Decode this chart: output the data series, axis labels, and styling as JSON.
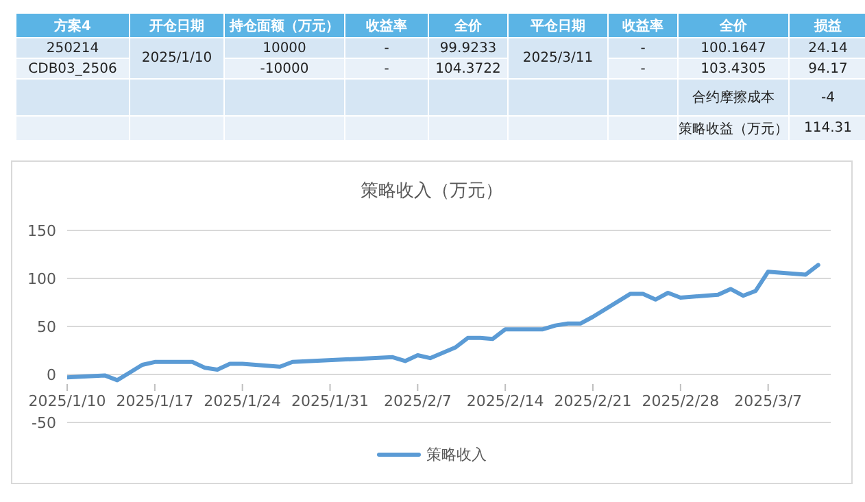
{
  "chart_data": {
    "type": "line",
    "title": "策略收入（万元）",
    "x": [
      "2025-01-10",
      "2025-01-13",
      "2025-01-14",
      "2025-01-15",
      "2025-01-16",
      "2025-01-17",
      "2025-01-20",
      "2025-01-21",
      "2025-01-22",
      "2025-01-23",
      "2025-01-24",
      "2025-01-27",
      "2025-01-28",
      "2025-02-05",
      "2025-02-06",
      "2025-02-07",
      "2025-02-08",
      "2025-02-10",
      "2025-02-11",
      "2025-02-12",
      "2025-02-13",
      "2025-02-14",
      "2025-02-17",
      "2025-02-18",
      "2025-02-19",
      "2025-02-20",
      "2025-02-21",
      "2025-02-24",
      "2025-02-25",
      "2025-02-26",
      "2025-02-27",
      "2025-02-28",
      "2025-03-03",
      "2025-03-04",
      "2025-03-05",
      "2025-03-06",
      "2025-03-07",
      "2025-03-10",
      "2025-03-11"
    ],
    "series": [
      {
        "name": "策略收入",
        "color": "#5b9bd5",
        "values": [
          -3,
          -1,
          -6,
          2,
          10,
          13,
          13,
          7,
          5,
          11,
          11,
          8,
          13,
          18,
          14,
          20,
          17,
          28,
          38,
          38,
          37,
          47,
          47,
          51,
          53,
          53,
          60,
          84,
          84,
          78,
          85,
          80,
          83,
          89,
          82,
          87,
          107,
          104,
          114
        ]
      }
    ],
    "xlim": [
      "2025-01-10",
      "2025-03-12"
    ],
    "xticks": [
      {
        "value": "2025-01-10",
        "label": "2025/1/10"
      },
      {
        "value": "2025-01-17",
        "label": "2025/1/17"
      },
      {
        "value": "2025-01-24",
        "label": "2025/1/24"
      },
      {
        "value": "2025-01-31",
        "label": "2025/1/31"
      },
      {
        "value": "2025-02-07",
        "label": "2025/2/7"
      },
      {
        "value": "2025-02-14",
        "label": "2025/2/14"
      },
      {
        "value": "2025-02-21",
        "label": "2025/2/21"
      },
      {
        "value": "2025-02-28",
        "label": "2025/2/28"
      },
      {
        "value": "2025-03-07",
        "label": "2025/3/7"
      }
    ],
    "ylim": [
      -50,
      150
    ],
    "yticks": [
      -50,
      0,
      50,
      100,
      150
    ],
    "grid": "y",
    "legend": "bottom",
    "marker": "none",
    "line_style": "solid",
    "annotations": [
      "方案4",
      "开仓日期",
      "持仓面额（万元）",
      "收益率",
      "全价",
      "平仓日期",
      "收益率",
      "全价",
      "损益",
      "250214",
      "2025/1/10",
      "10000",
      "-",
      "99.9233",
      "2025/3/11",
      "-",
      "100.1647",
      "24.14",
      "CDB03_2506",
      "-10000",
      "-",
      "104.3722",
      "-",
      "103.4305",
      "94.17",
      "合约摩擦成本",
      "-4",
      "策略收益（万元）",
      "114.31"
    ]
  }
}
